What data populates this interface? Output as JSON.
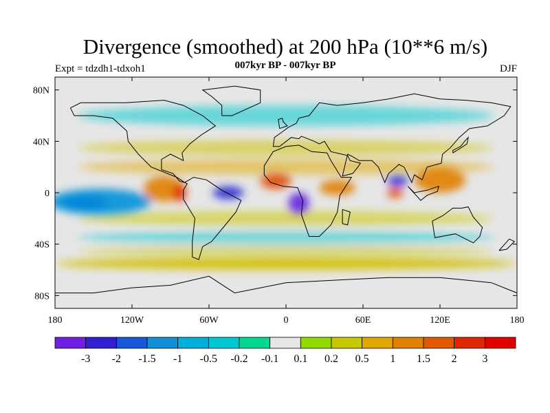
{
  "title": "Divergence (smoothed) at 200 hPa (10**6 m/s)",
  "experiment": "Expt = tdzdh1-tdxoh1",
  "subtitle": "007kyr BP - 007kyr BP",
  "season": "DJF",
  "map": {
    "projection": "cylindrical-equidistant",
    "lon_range": [
      -180,
      180
    ],
    "lat_range": [
      -90,
      90
    ],
    "x_ticks": [
      {
        "value": -180,
        "label": "180"
      },
      {
        "value": -120,
        "label": "120W"
      },
      {
        "value": -60,
        "label": "60W"
      },
      {
        "value": 0,
        "label": "0"
      },
      {
        "value": 60,
        "label": "60E"
      },
      {
        "value": 120,
        "label": "120E"
      },
      {
        "value": 180,
        "label": "180"
      }
    ],
    "y_ticks": [
      {
        "value": 80,
        "label": "80N"
      },
      {
        "value": 40,
        "label": "40N"
      },
      {
        "value": 0,
        "label": "0"
      },
      {
        "value": -40,
        "label": "40S"
      },
      {
        "value": -80,
        "label": "80S"
      }
    ],
    "background_color": "#e6e6e6",
    "features": [
      {
        "name": "central-pacific-convergence",
        "lon": -157,
        "lat": -8,
        "rx": 18,
        "ry": 6,
        "color": "#2828d0"
      },
      {
        "name": "tropical-pacific-blue",
        "lon": -145,
        "lat": -7,
        "rx": 40,
        "ry": 10,
        "color": "#0090d8"
      },
      {
        "name": "eastern-pacific-divergence",
        "lon": -95,
        "lat": 3,
        "rx": 16,
        "ry": 10,
        "color": "#e08000"
      },
      {
        "name": "south-america-divergence",
        "lon": -83,
        "lat": 0,
        "rx": 5,
        "ry": 7,
        "color": "#e02800"
      },
      {
        "name": "amazon-convergence",
        "lon": -45,
        "lat": 0,
        "rx": 12,
        "ry": 5,
        "color": "#2828d0"
      },
      {
        "name": "atlantic-divergence",
        "lon": -8,
        "lat": 9,
        "rx": 12,
        "ry": 6,
        "color": "#e04800"
      },
      {
        "name": "africa-convergence",
        "lon": 10,
        "lat": -8,
        "rx": 8,
        "ry": 8,
        "color": "#6020e0"
      },
      {
        "name": "indian-ocean-divergence",
        "lon": 40,
        "lat": 4,
        "rx": 14,
        "ry": 6,
        "color": "#e08000"
      },
      {
        "name": "bay-of-bengal-convergence",
        "lon": 87,
        "lat": 9,
        "rx": 8,
        "ry": 4,
        "color": "#2828d0"
      },
      {
        "name": "maritime-divergence",
        "lon": 85,
        "lat": 0,
        "rx": 6,
        "ry": 4,
        "color": "#e04800"
      },
      {
        "name": "west-pacific-divergence",
        "lon": 120,
        "lat": 10,
        "rx": 20,
        "ry": 10,
        "color": "#e08000"
      },
      {
        "name": "southern-ocean-bands",
        "lon": 0,
        "lat": -55,
        "rx": 180,
        "ry": 5,
        "color": "#d0c000"
      }
    ]
  },
  "colorbar": {
    "colors": [
      "#7020e0",
      "#3020d0",
      "#1858d8",
      "#1090d8",
      "#00b0d8",
      "#00c8d0",
      "#00d890",
      "#e6e6e6",
      "#90d800",
      "#c8c800",
      "#e0a800",
      "#e08000",
      "#e05800",
      "#e02800",
      "#e00000"
    ],
    "labels": [
      "-3",
      "-2",
      "-1.5",
      "-1",
      "-0.5",
      "-0.2",
      "-0.1",
      "0.1",
      "0.2",
      "0.5",
      "1",
      "1.5",
      "2",
      "3"
    ]
  }
}
